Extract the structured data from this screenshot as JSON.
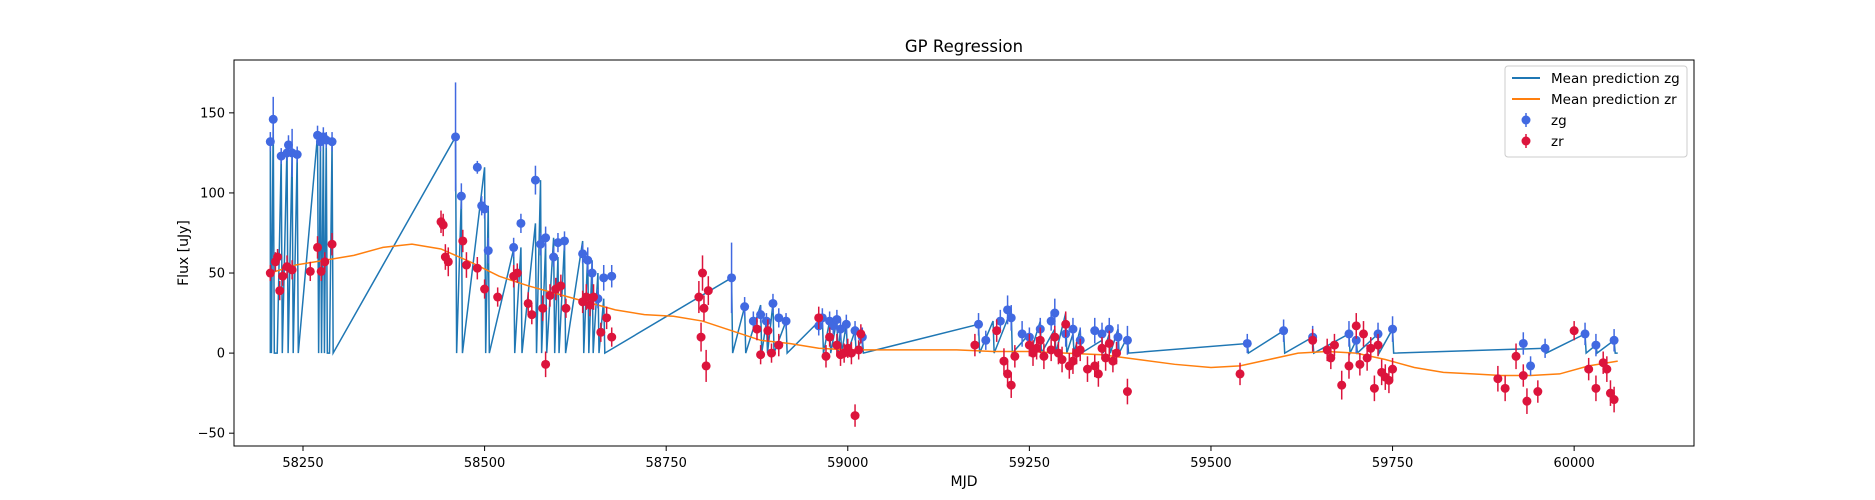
{
  "chart_data": {
    "type": "scatter",
    "title": "GP Regression",
    "xlabel": "MJD",
    "ylabel": "Flux [uJy]",
    "xlim": [
      58155,
      60165
    ],
    "ylim": [
      -58,
      183
    ],
    "xticks": [
      58250,
      58500,
      58750,
      59000,
      59250,
      59500,
      59750,
      60000
    ],
    "yticks": [
      -50,
      0,
      50,
      100,
      150
    ],
    "legend_position": "top-right",
    "colors": {
      "zg": "#1f77b4",
      "zr": "#ff7f0e",
      "zg_points": "#4169e1",
      "zr_points": "#dc143c"
    },
    "series": [
      {
        "name": "Mean prediction zg",
        "kind": "line",
        "baseline": 0,
        "x": [
          58205,
          58209,
          58213,
          58220,
          58228,
          58235,
          58242,
          58270,
          58274,
          58278,
          58282,
          58285,
          58290,
          58460,
          58468,
          58500,
          58505,
          58540,
          58550,
          58570,
          58577,
          58584,
          58595,
          58601,
          58610,
          58635,
          58642,
          58648,
          58656,
          58664,
          58840,
          58858,
          58880,
          58888,
          58897,
          58915,
          58965,
          58975,
          58985,
          58990,
          58998,
          59010,
          59020,
          59180,
          59200,
          59225,
          59250,
          59265,
          59285,
          59300,
          59310,
          59320,
          59350,
          59360,
          59372,
          59385,
          59550,
          59600,
          59640,
          59690,
          59700,
          59730,
          59750,
          59960,
          60015,
          60030,
          60055
        ],
        "y": [
          132,
          146,
          0,
          123,
          130,
          125,
          124,
          136,
          132,
          135,
          133,
          0,
          132,
          135,
          98,
          116,
          92,
          65,
          66,
          81,
          108,
          68,
          72,
          60,
          69,
          70,
          62,
          58,
          50,
          34,
          47,
          29,
          30,
          20,
          31,
          20,
          22,
          20,
          21,
          15,
          18,
          14,
          10,
          18,
          20,
          27,
          12,
          20,
          15,
          25,
          12,
          15,
          8,
          12,
          15,
          10,
          6,
          14,
          10,
          12,
          8,
          12,
          15,
          3,
          12,
          5,
          8
        ]
      },
      {
        "name": "Mean prediction zr",
        "kind": "line",
        "x": [
          58205,
          58240,
          58280,
          58320,
          58360,
          58400,
          58440,
          58480,
          58520,
          58560,
          58600,
          58640,
          58680,
          58720,
          58760,
          58800,
          58840,
          58880,
          58920,
          58960,
          59000,
          59050,
          59100,
          59150,
          59200,
          59250,
          59300,
          59350,
          59400,
          59450,
          59500,
          59540,
          59580,
          59620,
          59660,
          59700,
          59740,
          59780,
          59820,
          59860,
          59900,
          59940,
          59980,
          60020,
          60060
        ],
        "y": [
          50,
          55,
          58,
          61,
          66,
          68,
          65,
          57,
          48,
          42,
          37,
          32,
          27,
          24,
          23,
          20,
          14,
          8,
          6,
          3,
          2,
          2,
          2,
          2,
          1,
          1,
          0,
          -1,
          -4,
          -7,
          -9,
          -8,
          -4,
          0,
          1,
          0,
          -4,
          -9,
          -12,
          -13,
          -14,
          -14,
          -13,
          -8,
          -5
        ]
      },
      {
        "name": "zg",
        "kind": "points",
        "x": [
          58205,
          58209,
          58220,
          58228,
          58230,
          58235,
          58242,
          58270,
          58274,
          58278,
          58282,
          58290,
          58460,
          58468,
          58490,
          58496,
          58500,
          58505,
          58540,
          58550,
          58570,
          58577,
          58584,
          58595,
          58601,
          58610,
          58635,
          58642,
          58648,
          58656,
          58664,
          58675,
          58840,
          58858,
          58870,
          58880,
          58888,
          58897,
          58905,
          58915,
          58960,
          58965,
          58975,
          58980,
          58985,
          58990,
          58998,
          59010,
          59020,
          59180,
          59190,
          59210,
          59220,
          59225,
          59240,
          59250,
          59265,
          59280,
          59285,
          59300,
          59310,
          59320,
          59340,
          59350,
          59360,
          59372,
          59385,
          59550,
          59600,
          59640,
          59690,
          59700,
          59730,
          59750,
          59930,
          59940,
          59960,
          60015,
          60030,
          60055
        ],
        "y": [
          132,
          146,
          123,
          125,
          130,
          125,
          124,
          136,
          132,
          135,
          133,
          132,
          135,
          98,
          116,
          92,
          90,
          64,
          66,
          81,
          108,
          68,
          72,
          60,
          69,
          70,
          62,
          58,
          50,
          34,
          47,
          48,
          47,
          29,
          20,
          24,
          20,
          31,
          22,
          20,
          17,
          22,
          20,
          17,
          21,
          15,
          18,
          14,
          10,
          18,
          8,
          20,
          27,
          22,
          12,
          10,
          15,
          20,
          25,
          12,
          15,
          8,
          14,
          12,
          15,
          10,
          8,
          6,
          14,
          10,
          12,
          8,
          12,
          15,
          6,
          -8,
          3,
          12,
          5,
          8
        ],
        "yerr": [
          6,
          14,
          5,
          5,
          6,
          15,
          5,
          6,
          6,
          6,
          5,
          6,
          34,
          8,
          4,
          6,
          6,
          8,
          6,
          6,
          9,
          7,
          7,
          6,
          6,
          6,
          6,
          8,
          7,
          6,
          8,
          7,
          22,
          6,
          6,
          5,
          5,
          6,
          6,
          5,
          6,
          6,
          6,
          5,
          6,
          6,
          6,
          6,
          6,
          7,
          6,
          7,
          9,
          8,
          8,
          6,
          7,
          6,
          9,
          8,
          7,
          8,
          8,
          7,
          7,
          8,
          9,
          6,
          7,
          7,
          8,
          8,
          7,
          8,
          7,
          6,
          6,
          7,
          7,
          7
        ]
      },
      {
        "name": "zr",
        "kind": "points",
        "x": [
          58205,
          58212,
          58215,
          58218,
          58222,
          58228,
          58235,
          58260,
          58270,
          58275,
          58280,
          58290,
          58440,
          58443,
          58446,
          58450,
          58470,
          58475,
          58490,
          58500,
          58518,
          58540,
          58545,
          58560,
          58565,
          58580,
          58584,
          58590,
          58598,
          58605,
          58612,
          58635,
          58640,
          58645,
          58650,
          58660,
          58668,
          58675,
          58795,
          58798,
          58800,
          58802,
          58805,
          58808,
          58875,
          58880,
          58890,
          58895,
          58905,
          58960,
          58970,
          58975,
          58985,
          58990,
          58995,
          59000,
          59005,
          59010,
          59015,
          59018,
          59175,
          59205,
          59215,
          59220,
          59225,
          59230,
          59250,
          59255,
          59260,
          59265,
          59270,
          59280,
          59285,
          59290,
          59295,
          59300,
          59305,
          59310,
          59315,
          59320,
          59330,
          59340,
          59345,
          59350,
          59355,
          59360,
          59365,
          59370,
          59385,
          59540,
          59640,
          59660,
          59665,
          59670,
          59680,
          59690,
          59700,
          59705,
          59710,
          59715,
          59720,
          59725,
          59730,
          59735,
          59740,
          59745,
          59750,
          59895,
          59905,
          59920,
          59930,
          59935,
          59950,
          60000,
          60020,
          60030,
          60040,
          60045,
          60050,
          60055
        ],
        "y": [
          50,
          57,
          60,
          39,
          48,
          54,
          52,
          51,
          66,
          51,
          57,
          68,
          82,
          80,
          60,
          57,
          70,
          55,
          53,
          40,
          35,
          48,
          50,
          31,
          24,
          28,
          -7,
          36,
          40,
          42,
          28,
          32,
          35,
          30,
          35,
          13,
          22,
          10,
          35,
          10,
          50,
          28,
          -8,
          39,
          15,
          -1,
          14,
          0,
          5,
          22,
          -2,
          10,
          5,
          -1,
          0,
          3,
          0,
          -39,
          2,
          12,
          5,
          14,
          -5,
          -13,
          -20,
          -2,
          5,
          0,
          3,
          8,
          -2,
          2,
          10,
          0,
          -4,
          18,
          -8,
          -5,
          0,
          2,
          -10,
          -8,
          -13,
          3,
          -3,
          6,
          -5,
          0,
          -24,
          -13,
          8,
          2,
          -3,
          5,
          -20,
          -8,
          17,
          -7,
          12,
          -3,
          3,
          -22,
          5,
          -12,
          -15,
          -17,
          -10,
          -16,
          -22,
          -2,
          -14,
          -30,
          -24,
          14,
          -10,
          -22,
          -6,
          -10,
          -25,
          -29
        ],
        "yerr": [
          5,
          6,
          5,
          6,
          6,
          7,
          6,
          6,
          7,
          6,
          6,
          7,
          7,
          7,
          8,
          9,
          7,
          8,
          7,
          6,
          6,
          7,
          6,
          7,
          6,
          8,
          8,
          7,
          7,
          7,
          6,
          7,
          8,
          7,
          8,
          6,
          7,
          6,
          10,
          9,
          11,
          8,
          10,
          9,
          7,
          6,
          7,
          6,
          7,
          7,
          7,
          6,
          7,
          7,
          6,
          6,
          7,
          7,
          6,
          6,
          7,
          7,
          8,
          8,
          8,
          7,
          7,
          8,
          7,
          8,
          8,
          7,
          7,
          7,
          8,
          8,
          8,
          8,
          7,
          7,
          8,
          7,
          8,
          7,
          8,
          8,
          7,
          7,
          8,
          7,
          7,
          7,
          7,
          7,
          9,
          8,
          8,
          7,
          8,
          8,
          7,
          8,
          7,
          8,
          8,
          8,
          7,
          8,
          8,
          8,
          7,
          8,
          7,
          6,
          7,
          8,
          7,
          8,
          8,
          8
        ]
      }
    ]
  }
}
